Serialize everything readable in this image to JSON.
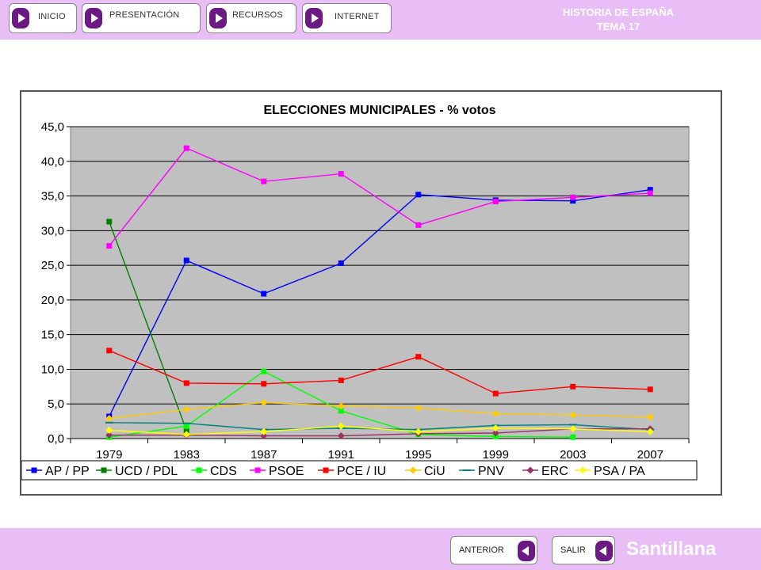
{
  "header": {
    "nav": [
      {
        "label": "INICIO"
      },
      {
        "label": "PRESENTACIÓN"
      },
      {
        "label": "RECURSOS"
      },
      {
        "label": "INTERNET"
      }
    ],
    "title_line1": "HISTORIA DE ESPAÑA",
    "title_line2": "TEMA 17"
  },
  "footer": {
    "prev_label": "ANTERIOR",
    "exit_label": "SALIR",
    "brand": "Santillana"
  },
  "colors": {
    "bar_background": "#e9bdf5",
    "button_accent": "#6a1a82",
    "plot_background": "#c0c0c0"
  },
  "chart_data": {
    "type": "line",
    "title": "ELECCIONES MUNICIPALES - % votos",
    "x": [
      "1979",
      "1983",
      "1987",
      "1991",
      "1995",
      "1999",
      "2003",
      "2007"
    ],
    "ylim": [
      0,
      45
    ],
    "yticks": [
      "0,0",
      "5,0",
      "10,0",
      "15,0",
      "20,0",
      "25,0",
      "30,0",
      "35,0",
      "40,0",
      "45,0"
    ],
    "grid": true,
    "legend_position": "bottom",
    "series": [
      {
        "name": "AP / PP",
        "color": "#0000ff",
        "marker": "square",
        "values": [
          3.2,
          25.7,
          20.9,
          25.3,
          35.2,
          34.4,
          34.3,
          35.9
        ]
      },
      {
        "name": "UCD / PDL",
        "color": "#008000",
        "marker": "square",
        "values": [
          31.3,
          1.2,
          null,
          null,
          null,
          null,
          null,
          null
        ]
      },
      {
        "name": "CDS",
        "color": "#00ff00",
        "marker": "square",
        "values": [
          0.2,
          1.8,
          9.7,
          4.0,
          0.6,
          0.3,
          0.2,
          null
        ]
      },
      {
        "name": "PSOE",
        "color": "#ff00ff",
        "marker": "square",
        "values": [
          27.8,
          41.9,
          37.1,
          38.2,
          30.8,
          34.2,
          34.8,
          35.4
        ]
      },
      {
        "name": "PCE / IU",
        "color": "#ff0000",
        "marker": "square",
        "values": [
          12.7,
          8.0,
          7.9,
          8.4,
          11.8,
          6.5,
          7.5,
          7.1
        ]
      },
      {
        "name": "CiU",
        "color": "#ffcc00",
        "marker": "diamond",
        "values": [
          2.9,
          4.2,
          5.2,
          4.7,
          4.4,
          3.6,
          3.4,
          3.1
        ]
      },
      {
        "name": "PNV",
        "color": "#008080",
        "marker": "dash",
        "values": [
          2.3,
          2.2,
          1.3,
          1.5,
          1.3,
          1.9,
          2.0,
          1.3
        ]
      },
      {
        "name": "ERC",
        "color": "#993366",
        "marker": "diamond",
        "values": [
          0.5,
          0.5,
          0.4,
          0.4,
          0.7,
          0.8,
          1.4,
          1.4
        ]
      },
      {
        "name": "PSA / PA",
        "color": "#ffff00",
        "marker": "diamond",
        "values": [
          1.2,
          0.6,
          1.0,
          1.8,
          1.0,
          1.5,
          1.4,
          1.0
        ]
      }
    ]
  }
}
